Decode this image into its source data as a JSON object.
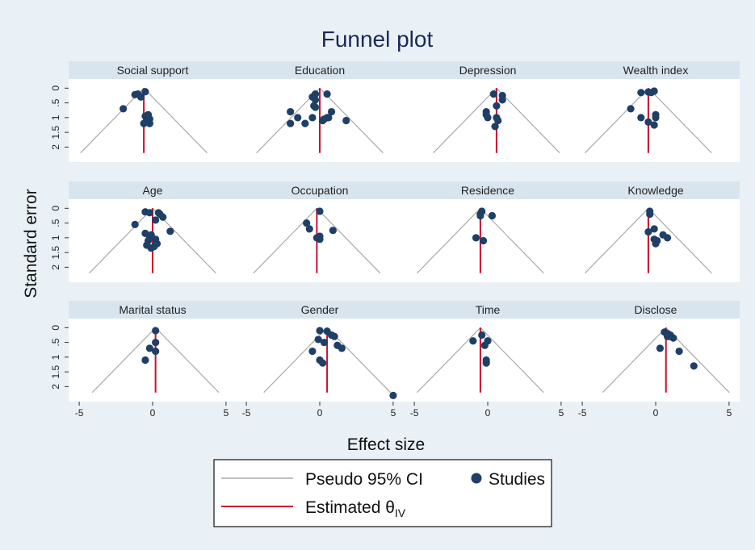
{
  "chart_data": {
    "type": "scatter",
    "title": "Funnel plot",
    "xlabel": "Effect size",
    "ylabel": "Standard error",
    "xlim": [
      -5.5,
      5.5
    ],
    "ylim": [
      -0.2,
      2.4
    ],
    "y_reversed": true,
    "x_ticks": [
      -5,
      0,
      5
    ],
    "x_tick_labels": [
      "-5",
      "0",
      "5"
    ],
    "y_ticks": [
      0,
      0.5,
      1,
      1.5,
      2
    ],
    "y_tick_labels": [
      "0",
      ".5",
      "1",
      "1.5",
      "2"
    ],
    "grid": false,
    "legend": {
      "placement": "bottom",
      "entries": [
        {
          "label": "Pseudo 95% CI",
          "color": "#aaaaaa",
          "kind": "line"
        },
        {
          "label": "Studies",
          "color": "#1f3f66",
          "kind": "marker"
        },
        {
          "label": "Estimated θ",
          "subscript": "IV",
          "color": "#c8102e",
          "kind": "line"
        }
      ]
    },
    "colors": {
      "points": "#1f3f66",
      "estimate": "#c8102e",
      "ci": "#aaaaaa",
      "strip": "#d9e5ee",
      "frame": "#ffffff"
    },
    "panels": [
      {
        "name": "Social support",
        "theta": -0.6,
        "se_max": 2.2,
        "points": [
          [
            -1.0,
            0.2
          ],
          [
            -0.5,
            0.12
          ],
          [
            -0.8,
            0.3
          ],
          [
            -1.2,
            0.22
          ],
          [
            -2.0,
            0.7
          ],
          [
            -0.3,
            0.9
          ],
          [
            -0.5,
            0.95
          ],
          [
            -0.2,
            1.05
          ],
          [
            -0.4,
            1.15
          ],
          [
            -0.2,
            1.2
          ],
          [
            -0.6,
            1.2
          ]
        ]
      },
      {
        "name": "Education",
        "theta": 0.0,
        "se_max": 2.2,
        "points": [
          [
            -0.3,
            0.2
          ],
          [
            0.5,
            0.2
          ],
          [
            -0.5,
            0.3
          ],
          [
            -0.3,
            0.4
          ],
          [
            -0.4,
            0.6
          ],
          [
            -0.3,
            0.65
          ],
          [
            0.8,
            0.8
          ],
          [
            -2.0,
            0.8
          ],
          [
            -1.5,
            1.0
          ],
          [
            0.5,
            1.0
          ],
          [
            0.3,
            1.05
          ],
          [
            0.6,
            1.0
          ],
          [
            -1.0,
            1.2
          ],
          [
            -0.5,
            1.0
          ],
          [
            -2.0,
            1.2
          ],
          [
            0.2,
            1.1
          ],
          [
            1.8,
            1.1
          ]
        ]
      },
      {
        "name": "Depression",
        "theta": 0.6,
        "se_max": 2.2,
        "points": [
          [
            0.4,
            0.2
          ],
          [
            1.0,
            0.25
          ],
          [
            1.0,
            0.4
          ],
          [
            0.6,
            0.6
          ],
          [
            -0.1,
            0.8
          ],
          [
            -0.1,
            0.9
          ],
          [
            0.0,
            1.0
          ],
          [
            0.6,
            1.0
          ],
          [
            0.7,
            1.1
          ],
          [
            0.5,
            1.3
          ]
        ]
      },
      {
        "name": "Wealth index",
        "theta": -0.5,
        "se_max": 2.2,
        "points": [
          [
            -0.5,
            0.13
          ],
          [
            -0.1,
            0.1
          ],
          [
            -1.0,
            0.15
          ],
          [
            -0.3,
            0.15
          ],
          [
            -1.7,
            0.7
          ],
          [
            -1.0,
            1.0
          ],
          [
            0.0,
            0.9
          ],
          [
            -0.5,
            1.15
          ],
          [
            0.0,
            1.0
          ],
          [
            -0.1,
            1.25
          ]
        ]
      },
      {
        "name": "Age",
        "theta": 0.0,
        "se_max": 2.2,
        "points": [
          [
            -0.5,
            0.12
          ],
          [
            -0.2,
            0.15
          ],
          [
            0.5,
            0.2
          ],
          [
            0.4,
            0.15
          ],
          [
            0.7,
            0.3
          ],
          [
            0.2,
            0.4
          ],
          [
            -1.2,
            0.55
          ],
          [
            1.2,
            0.78
          ],
          [
            -0.5,
            0.85
          ],
          [
            -0.1,
            0.9
          ],
          [
            -0.2,
            1.0
          ],
          [
            0.2,
            1.05
          ],
          [
            -0.3,
            1.1
          ],
          [
            0.3,
            1.2
          ],
          [
            -0.4,
            1.25
          ],
          [
            0.1,
            1.3
          ],
          [
            -0.1,
            1.35
          ]
        ]
      },
      {
        "name": "Occupation",
        "theta": -0.2,
        "se_max": 2.2,
        "points": [
          [
            0.0,
            0.1
          ],
          [
            -0.9,
            0.5
          ],
          [
            -0.7,
            0.7
          ],
          [
            0.9,
            0.75
          ],
          [
            0.0,
            0.95
          ],
          [
            -0.2,
            1.0
          ],
          [
            0.0,
            1.05
          ]
        ]
      },
      {
        "name": "Residence",
        "theta": -0.5,
        "se_max": 2.2,
        "points": [
          [
            -0.4,
            0.1
          ],
          [
            -0.5,
            0.2
          ],
          [
            0.3,
            0.25
          ],
          [
            -0.5,
            0.25
          ],
          [
            -0.8,
            1.0
          ],
          [
            -0.3,
            1.1
          ]
        ]
      },
      {
        "name": "Knowledge",
        "theta": -0.5,
        "se_max": 2.2,
        "points": [
          [
            -0.4,
            0.1
          ],
          [
            -0.4,
            0.2
          ],
          [
            -0.1,
            0.7
          ],
          [
            -0.5,
            0.8
          ],
          [
            0.5,
            0.9
          ],
          [
            0.8,
            1.0
          ],
          [
            -0.1,
            1.05
          ],
          [
            0.1,
            1.1
          ],
          [
            0.0,
            1.2
          ]
        ]
      },
      {
        "name": "Marital status",
        "theta": 0.2,
        "se_max": 2.2,
        "points": [
          [
            0.2,
            0.1
          ],
          [
            0.2,
            0.5
          ],
          [
            -0.2,
            0.7
          ],
          [
            0.2,
            0.8
          ],
          [
            -0.5,
            1.1
          ]
        ]
      },
      {
        "name": "Gender",
        "theta": 0.5,
        "se_max": 2.2,
        "points": [
          [
            0.0,
            0.1
          ],
          [
            0.5,
            0.12
          ],
          [
            0.8,
            0.25
          ],
          [
            1.0,
            0.3
          ],
          [
            -0.1,
            0.4
          ],
          [
            0.3,
            0.5
          ],
          [
            1.2,
            0.6
          ],
          [
            1.5,
            0.7
          ],
          [
            -0.5,
            0.8
          ],
          [
            0.0,
            1.1
          ],
          [
            0.2,
            1.2
          ],
          [
            5.0,
            2.3
          ]
        ]
      },
      {
        "name": "Time",
        "theta": -0.5,
        "se_max": 2.2,
        "points": [
          [
            -0.4,
            0.25
          ],
          [
            -1.0,
            0.45
          ],
          [
            0.0,
            0.45
          ],
          [
            -0.2,
            0.6
          ],
          [
            -0.1,
            1.1
          ],
          [
            -0.1,
            1.2
          ]
        ]
      },
      {
        "name": "Disclose",
        "theta": 0.7,
        "se_max": 2.2,
        "points": [
          [
            0.6,
            0.15
          ],
          [
            0.8,
            0.2
          ],
          [
            1.0,
            0.25
          ],
          [
            0.8,
            0.3
          ],
          [
            1.2,
            0.35
          ],
          [
            0.9,
            0.3
          ],
          [
            0.3,
            0.7
          ],
          [
            1.6,
            0.8
          ],
          [
            2.6,
            1.3
          ]
        ]
      }
    ]
  }
}
